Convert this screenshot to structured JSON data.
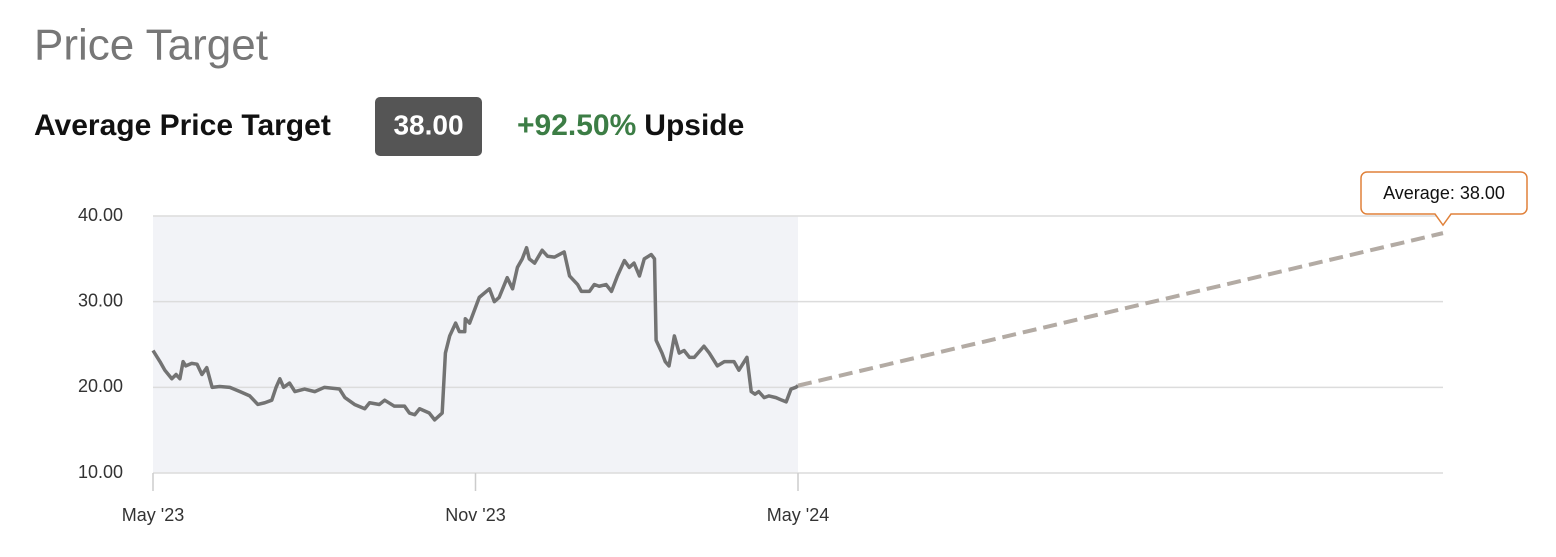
{
  "header": {
    "title": "Price Target",
    "label": "Average Price Target",
    "badge": "38.00",
    "upside": "+92.50%",
    "upside_label": "Upside"
  },
  "chart_data": {
    "type": "line",
    "xlim": [
      0,
      24
    ],
    "xticks": [
      {
        "value": 0,
        "label": "May '23"
      },
      {
        "value": 6,
        "label": "Nov '23"
      },
      {
        "value": 12,
        "label": "May '24"
      }
    ],
    "ylim": [
      10,
      40
    ],
    "yticks": [
      {
        "value": 10,
        "label": "10.00"
      },
      {
        "value": 20,
        "label": "20.00"
      },
      {
        "value": 30,
        "label": "30.00"
      },
      {
        "value": 40,
        "label": "40.00"
      }
    ],
    "grid": true,
    "annotation": "Average: 38.00",
    "series": [
      {
        "color": "#737373",
        "dashed": false,
        "shaded": true,
        "x": [
          0,
          0.13,
          0.22,
          0.35,
          0.43,
          0.5,
          0.56,
          0.61,
          0.72,
          0.82,
          0.91,
          1.0,
          1.1,
          1.24,
          1.43,
          1.62,
          1.8,
          1.95,
          2.08,
          2.21,
          2.29,
          2.36,
          2.43,
          2.54,
          2.64,
          2.82,
          3.01,
          3.19,
          3.47,
          3.57,
          3.75,
          3.94,
          4.03,
          4.21,
          4.31,
          4.49,
          4.68,
          4.77,
          4.87,
          4.96,
          5.14,
          5.24,
          5.38,
          5.44,
          5.52,
          5.63,
          5.7,
          5.8,
          5.81,
          5.89,
          5.98,
          6.07,
          6.26,
          6.35,
          6.44,
          6.59,
          6.69,
          6.78,
          6.87,
          6.95,
          7.0,
          7.1,
          7.24,
          7.34,
          7.47,
          7.65,
          7.75,
          7.9,
          7.97,
          8.12,
          8.21,
          8.3,
          8.43,
          8.53,
          8.64,
          8.77,
          8.86,
          8.95,
          9.05,
          9.14,
          9.27,
          9.33,
          9.36,
          9.47,
          9.53,
          9.6,
          9.7,
          9.79,
          9.88,
          9.98,
          10.07,
          10.25,
          10.35,
          10.5,
          10.63,
          10.81,
          10.9,
          11.05,
          11.13,
          11.2,
          11.27,
          11.37,
          11.46,
          11.59,
          11.7,
          11.78,
          11.87,
          11.96,
          12.0
        ],
        "values": [
          24.3,
          23,
          22,
          21,
          21.5,
          21,
          23,
          22.5,
          22.8,
          22.7,
          21.5,
          22.3,
          20,
          20.1,
          20,
          19.5,
          19,
          18,
          18.2,
          18.5,
          20,
          21,
          20,
          20.5,
          19.5,
          19.8,
          19.5,
          20,
          19.8,
          18.8,
          18,
          17.5,
          18.2,
          18,
          18.5,
          17.8,
          17.8,
          17,
          16.8,
          17.5,
          17,
          16.2,
          17,
          24,
          26,
          27.5,
          26.5,
          26.5,
          28,
          27.5,
          29,
          30.5,
          31.5,
          30,
          30.5,
          32.8,
          31.5,
          34,
          35,
          36.3,
          35,
          34.5,
          36,
          35.3,
          35.2,
          35.8,
          33,
          32,
          31.2,
          31.2,
          32,
          31.8,
          32,
          31.2,
          33,
          34.8,
          34,
          34.5,
          33,
          35,
          35.5,
          35,
          25.5,
          24,
          23,
          22.5,
          26,
          24,
          24.3,
          23.5,
          23.5,
          24.8,
          24,
          22.5,
          23,
          23,
          22,
          23.5,
          19.5,
          19.2,
          19.5,
          18.8,
          19,
          18.8,
          18.5,
          18.3,
          19.8,
          20,
          20.2
        ]
      },
      {
        "color": "#b3aba4",
        "dashed": true,
        "shaded": false,
        "x": [
          12,
          24
        ],
        "values": [
          20.2,
          38
        ]
      }
    ]
  }
}
